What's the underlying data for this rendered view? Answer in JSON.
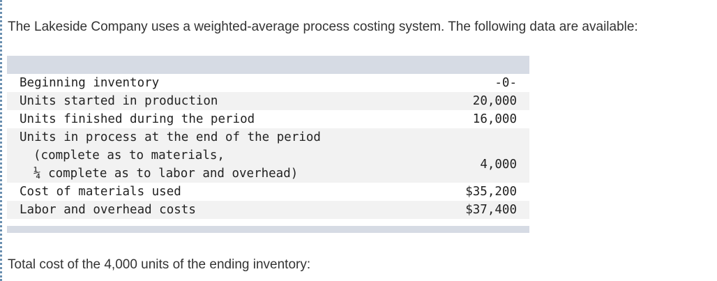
{
  "intro_text": "The Lakeside Company uses a weighted-average process costing system. The following data are available:",
  "table": {
    "rows": [
      {
        "label": "Beginning inventory",
        "value": "-0-"
      },
      {
        "label": "Units started in production",
        "value": "20,000"
      },
      {
        "label": "Units finished during the period",
        "value": "16,000"
      },
      {
        "label_lines": [
          "Units in process at the end of the period",
          "(complete as to materials,",
          "¼ complete as to labor and overhead)"
        ],
        "value": "4,000"
      },
      {
        "label": "Cost of materials used",
        "value": "$35,200"
      },
      {
        "label": "Labor and overhead costs",
        "value": "$37,400"
      }
    ]
  },
  "question_text": "Total cost of the 4,000 units of the ending inventory:"
}
